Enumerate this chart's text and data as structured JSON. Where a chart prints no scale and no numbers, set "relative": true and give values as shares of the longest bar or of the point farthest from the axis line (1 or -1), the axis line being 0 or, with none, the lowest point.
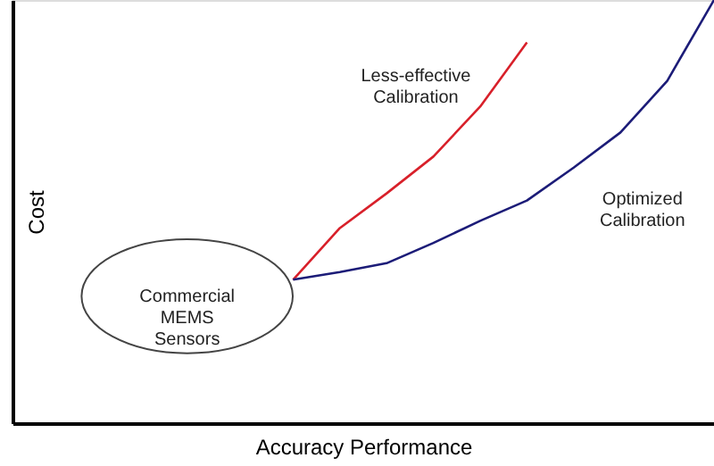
{
  "chart_data": {
    "type": "line",
    "relative": true,
    "xlabel": "Accuracy Performance",
    "ylabel": "Cost",
    "categories": [
      null,
      null,
      null,
      null,
      null,
      null,
      null,
      null,
      null,
      null,
      null,
      null,
      null,
      null,
      null,
      null
    ],
    "series": [
      {
        "name": "Less-effective Calibration",
        "color": "#d8202a",
        "values": [
          null,
          null,
          null,
          null,
          null,
          null,
          0.339,
          0.461,
          0.543,
          0.63,
          0.748,
          0.9,
          null,
          null,
          null,
          null
        ]
      },
      {
        "name": "Optimized Calibration",
        "color": "#1c1c78",
        "values": [
          null,
          null,
          null,
          null,
          null,
          null,
          0.339,
          0.357,
          0.378,
          0.426,
          0.478,
          0.526,
          0.604,
          0.687,
          0.809,
          1.0
        ]
      }
    ],
    "annotations": [
      "Commercial MEMS Sensors"
    ]
  }
}
